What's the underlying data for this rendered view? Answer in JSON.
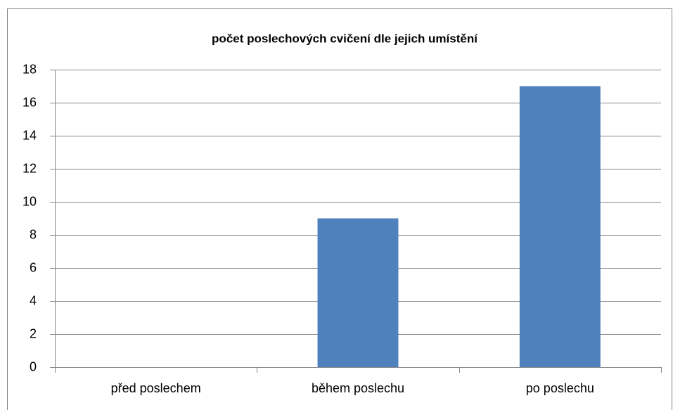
{
  "chart_data": {
    "type": "bar",
    "title": "počet poslechových cvičení dle jejich umístění",
    "categories": [
      "před poslechem",
      "během poslechu",
      "po poslechu"
    ],
    "values": [
      0,
      9,
      17
    ],
    "color": "#4f81bd",
    "ylim": [
      0,
      18
    ],
    "yticks": [
      0,
      2,
      4,
      6,
      8,
      10,
      12,
      14,
      16,
      18
    ],
    "grid": true
  }
}
